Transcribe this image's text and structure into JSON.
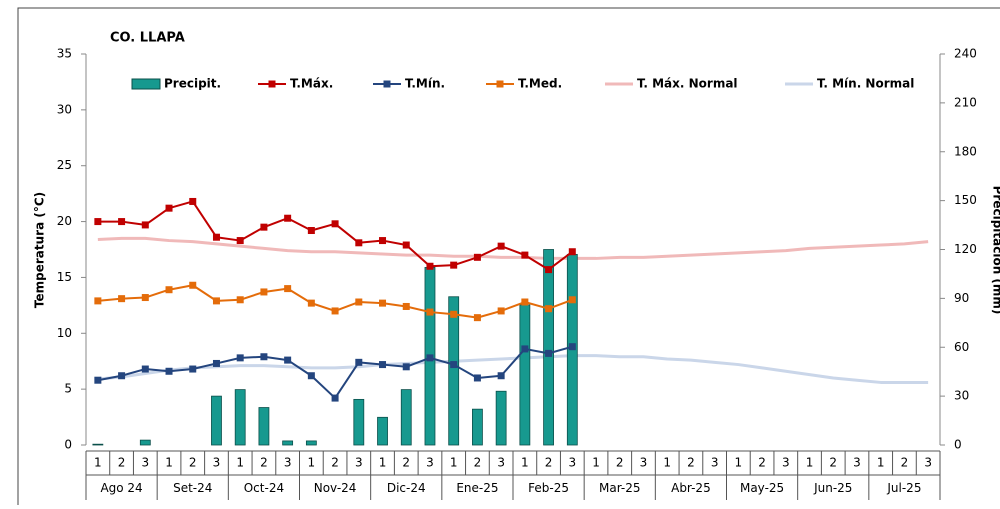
{
  "chart_data": {
    "type": "combo",
    "title": "CO. LLAPA",
    "y_label": "Temperatura (°C)",
    "y2_label": "Precipitación (mm)",
    "categories": [
      "1",
      "2",
      "3",
      "1",
      "2",
      "3",
      "1",
      "2",
      "3",
      "1",
      "2",
      "3",
      "1",
      "2",
      "3",
      "1",
      "2",
      "3",
      "1",
      "2",
      "3",
      "1",
      "2",
      "3",
      "1",
      "2",
      "3",
      "1",
      "2",
      "3",
      "1",
      "2",
      "3",
      "1",
      "2",
      "3"
    ],
    "months": [
      "Ago 24",
      "Set-24",
      "Oct-24",
      "Nov-24",
      "Dic-24",
      "Ene-25",
      "Feb-25",
      "Mar-25",
      "Abr-25",
      "May-25",
      "Jun-25",
      "Jul-25"
    ],
    "ylim": [
      0,
      35
    ],
    "yticks": [
      0,
      5,
      10,
      15,
      20,
      25,
      30,
      35
    ],
    "y2lim": [
      0,
      240
    ],
    "y2ticks": [
      0,
      30,
      60,
      90,
      120,
      150,
      180,
      210,
      240
    ],
    "series": [
      {
        "name": "Precipit.",
        "type": "bar",
        "axis": "y2",
        "color": "#17998f",
        "values": [
          0.5,
          0,
          3,
          0,
          0,
          30,
          34,
          23,
          2.5,
          2.5,
          0,
          28,
          17,
          34,
          109,
          91,
          22,
          33,
          86,
          120,
          117,
          null,
          null,
          null,
          null,
          null,
          null,
          null,
          null,
          null,
          null,
          null,
          null,
          null,
          null,
          null
        ]
      },
      {
        "name": "T.Máx.",
        "type": "line",
        "markers": true,
        "color": "#c00000",
        "values": [
          20.0,
          20.0,
          19.7,
          21.2,
          21.8,
          18.6,
          18.3,
          19.5,
          20.3,
          19.2,
          19.8,
          18.1,
          18.3,
          17.9,
          16.0,
          16.1,
          16.8,
          17.8,
          17.0,
          15.7,
          17.3,
          null,
          null,
          null,
          null,
          null,
          null,
          null,
          null,
          null,
          null,
          null,
          null,
          null,
          null,
          null
        ]
      },
      {
        "name": "T.Mín.",
        "type": "line",
        "markers": true,
        "color": "#24457e",
        "values": [
          5.8,
          6.2,
          6.8,
          6.6,
          6.8,
          7.3,
          7.8,
          7.9,
          7.6,
          6.2,
          4.2,
          7.4,
          7.2,
          7.0,
          7.8,
          7.2,
          6.0,
          6.2,
          8.6,
          8.2,
          8.8,
          null,
          null,
          null,
          null,
          null,
          null,
          null,
          null,
          null,
          null,
          null,
          null,
          null,
          null,
          null
        ]
      },
      {
        "name": "T.Med.",
        "type": "line",
        "markers": true,
        "color": "#e46c0a",
        "values": [
          12.9,
          13.1,
          13.2,
          13.9,
          14.3,
          12.9,
          13.0,
          13.7,
          14.0,
          12.7,
          12.0,
          12.8,
          12.7,
          12.4,
          11.9,
          11.7,
          11.4,
          12.0,
          12.8,
          12.2,
          13.0,
          null,
          null,
          null,
          null,
          null,
          null,
          null,
          null,
          null,
          null,
          null,
          null,
          null,
          null,
          null
        ]
      },
      {
        "name": "T. Máx. Normal",
        "type": "line",
        "markers": false,
        "color": "#f0b9b9",
        "values": [
          18.4,
          18.5,
          18.5,
          18.3,
          18.2,
          18.0,
          17.8,
          17.6,
          17.4,
          17.3,
          17.3,
          17.2,
          17.1,
          17.0,
          17.0,
          16.9,
          16.9,
          16.8,
          16.8,
          16.7,
          16.7,
          16.7,
          16.8,
          16.8,
          16.9,
          17.0,
          17.1,
          17.2,
          17.3,
          17.4,
          17.6,
          17.7,
          17.8,
          17.9,
          18.0,
          18.2
        ]
      },
      {
        "name": "T. Mín. Normal",
        "type": "line",
        "markers": false,
        "color": "#cad6e9",
        "values": [
          5.9,
          6.1,
          6.4,
          6.7,
          6.9,
          7.0,
          7.1,
          7.1,
          7.0,
          6.9,
          6.9,
          7.0,
          7.2,
          7.3,
          7.4,
          7.5,
          7.6,
          7.7,
          7.8,
          7.9,
          8.0,
          8.0,
          7.9,
          7.9,
          7.7,
          7.6,
          7.4,
          7.2,
          6.9,
          6.6,
          6.3,
          6.0,
          5.8,
          5.6,
          5.6,
          5.6
        ]
      }
    ]
  }
}
